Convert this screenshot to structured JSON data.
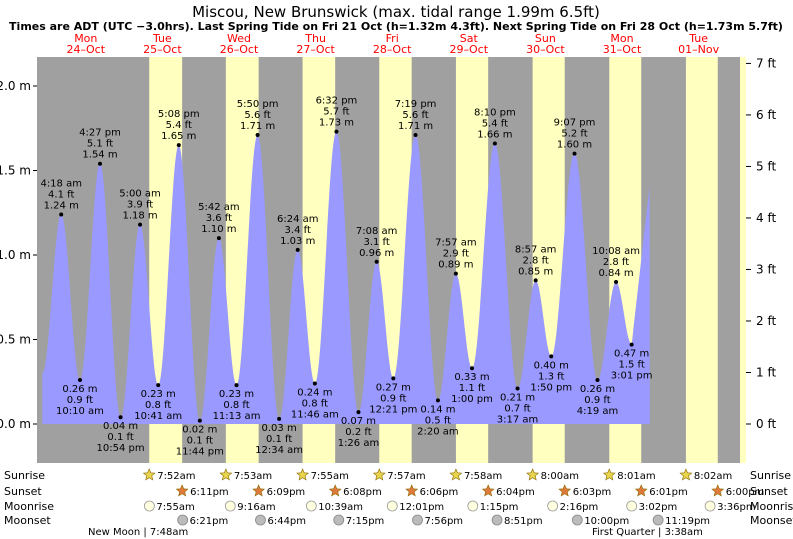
{
  "chart_data": {
    "type": "area",
    "title": "Miscou, New Brunswick (max. tidal range 1.99m 6.5ft)",
    "subtitle": "Times are ADT (UTC −3.0hrs). Last Spring Tide on Fri 21 Oct (h=1.32m 4.3ft). Next Spring Tide on Fri 28 Oct (h=1.73m 5.7ft)",
    "days": [
      {
        "dow": "Mon",
        "date": "24–Oct"
      },
      {
        "dow": "Tue",
        "date": "25–Oct"
      },
      {
        "dow": "Wed",
        "date": "26–Oct"
      },
      {
        "dow": "Thu",
        "date": "27–Oct"
      },
      {
        "dow": "Fri",
        "date": "28–Oct"
      },
      {
        "dow": "Sat",
        "date": "29–Oct"
      },
      {
        "dow": "Sun",
        "date": "30–Oct"
      },
      {
        "dow": "Mon",
        "date": "31–Oct"
      },
      {
        "dow": "Tue",
        "date": "01–Nov"
      }
    ],
    "y_left_ticks": [
      {
        "v": 0.0,
        "label": "0.0 m"
      },
      {
        "v": 0.5,
        "label": "0.5 m"
      },
      {
        "v": 1.0,
        "label": "1.0 m"
      },
      {
        "v": 1.5,
        "label": "1.5 m"
      },
      {
        "v": 2.0,
        "label": "2.0 m"
      }
    ],
    "y_right_ticks": [
      {
        "v": 0.0,
        "label": "0 ft"
      },
      {
        "v": 0.3048,
        "label": "1 ft"
      },
      {
        "v": 0.6096,
        "label": "2 ft"
      },
      {
        "v": 0.9144,
        "label": "3 ft"
      },
      {
        "v": 1.2192,
        "label": "4 ft"
      },
      {
        "v": 1.524,
        "label": "5 ft"
      },
      {
        "v": 1.8288,
        "label": "6 ft"
      },
      {
        "v": 2.1336,
        "label": "7 ft"
      }
    ],
    "tides": [
      {
        "time": "4:18 am",
        "ft": "4.1 ft",
        "m": "1.24 m",
        "hour": 4.3,
        "h": 1.24,
        "type": "high"
      },
      {
        "time": "10:10 am",
        "ft": "0.9 ft",
        "m": "0.26 m",
        "hour": 10.17,
        "h": 0.26,
        "type": "low"
      },
      {
        "time": "4:27 pm",
        "ft": "5.1 ft",
        "m": "1.54 m",
        "hour": 16.45,
        "h": 1.54,
        "type": "high"
      },
      {
        "time": "10:54 pm",
        "ft": "0.1 ft",
        "m": "0.04 m",
        "hour": 22.9,
        "h": 0.04,
        "type": "low"
      },
      {
        "time": "5:00 am",
        "ft": "3.9 ft",
        "m": "1.18 m",
        "hour": 29.0,
        "h": 1.18,
        "type": "high"
      },
      {
        "time": "10:41 am",
        "ft": "0.8 ft",
        "m": "0.23 m",
        "hour": 34.68,
        "h": 0.23,
        "type": "low"
      },
      {
        "time": "5:08 pm",
        "ft": "5.4 ft",
        "m": "1.65 m",
        "hour": 41.13,
        "h": 1.65,
        "type": "high"
      },
      {
        "time": "11:44 pm",
        "ft": "0.1 ft",
        "m": "0.02 m",
        "hour": 47.73,
        "h": 0.02,
        "type": "low"
      },
      {
        "time": "5:42 am",
        "ft": "3.6 ft",
        "m": "1.10 m",
        "hour": 53.7,
        "h": 1.1,
        "type": "high"
      },
      {
        "time": "11:13 am",
        "ft": "0.8 ft",
        "m": "0.23 m",
        "hour": 59.22,
        "h": 0.23,
        "type": "low"
      },
      {
        "time": "5:50 pm",
        "ft": "5.6 ft",
        "m": "1.71 m",
        "hour": 65.83,
        "h": 1.71,
        "type": "high"
      },
      {
        "time": "12:34 am",
        "ft": "0.1 ft",
        "m": "0.03 m",
        "hour": 72.57,
        "h": 0.03,
        "type": "low"
      },
      {
        "time": "6:24 am",
        "ft": "3.4 ft",
        "m": "1.03 m",
        "hour": 78.4,
        "h": 1.03,
        "type": "high"
      },
      {
        "time": "11:46 am",
        "ft": "0.8 ft",
        "m": "0.24 m",
        "hour": 83.77,
        "h": 0.24,
        "type": "low"
      },
      {
        "time": "6:32 pm",
        "ft": "5.7 ft",
        "m": "1.73 m",
        "hour": 90.53,
        "h": 1.73,
        "type": "high"
      },
      {
        "time": "1:26 am",
        "ft": "0.2 ft",
        "m": "0.07 m",
        "hour": 97.43,
        "h": 0.07,
        "type": "low"
      },
      {
        "time": "7:08 am",
        "ft": "3.1 ft",
        "m": "0.96 m",
        "hour": 103.13,
        "h": 0.96,
        "type": "high"
      },
      {
        "time": "12:21 pm",
        "ft": "0.9 ft",
        "m": "0.27 m",
        "hour": 108.35,
        "h": 0.27,
        "type": "low"
      },
      {
        "time": "7:19 pm",
        "ft": "5.6 ft",
        "m": "1.71 m",
        "hour": 115.32,
        "h": 1.71,
        "type": "high"
      },
      {
        "time": "2:20 am",
        "ft": "0.5 ft",
        "m": "0.14 m",
        "hour": 122.33,
        "h": 0.14,
        "type": "low"
      },
      {
        "time": "7:57 am",
        "ft": "2.9 ft",
        "m": "0.89 m",
        "hour": 127.95,
        "h": 0.89,
        "type": "high"
      },
      {
        "time": "1:00 pm",
        "ft": "1.1 ft",
        "m": "0.33 m",
        "hour": 133.0,
        "h": 0.33,
        "type": "low"
      },
      {
        "time": "8:10 pm",
        "ft": "5.4 ft",
        "m": "1.66 m",
        "hour": 140.17,
        "h": 1.66,
        "type": "high"
      },
      {
        "time": "3:17 am",
        "ft": "0.7 ft",
        "m": "0.21 m",
        "hour": 147.28,
        "h": 0.21,
        "type": "low"
      },
      {
        "time": "8:57 am",
        "ft": "2.8 ft",
        "m": "0.85 m",
        "hour": 152.95,
        "h": 0.85,
        "type": "high"
      },
      {
        "time": "1:50 pm",
        "ft": "1.3 ft",
        "m": "0.40 m",
        "hour": 157.83,
        "h": 0.4,
        "type": "low"
      },
      {
        "time": "9:07 pm",
        "ft": "5.2 ft",
        "m": "1.60 m",
        "hour": 165.12,
        "h": 1.6,
        "type": "high"
      },
      {
        "time": "4:19 am",
        "ft": "0.9 ft",
        "m": "0.26 m",
        "hour": 172.32,
        "h": 0.26,
        "type": "low"
      },
      {
        "time": "10:08 am",
        "ft": "2.8 ft",
        "m": "0.84 m",
        "hour": 178.13,
        "h": 0.84,
        "type": "high"
      },
      {
        "time": "3:01 pm",
        "ft": "1.5 ft",
        "m": "0.47 m",
        "hour": 183.02,
        "h": 0.47,
        "type": "low"
      }
    ],
    "sun": [
      {
        "rise": "7:52am",
        "set": "6:11pm",
        "rise_hr": 31.87,
        "set_hr": 42.18
      },
      {
        "rise": "7:53am",
        "set": "6:09pm",
        "rise_hr": 55.88,
        "set_hr": 66.15
      },
      {
        "rise": "7:55am",
        "set": "6:08pm",
        "rise_hr": 79.92,
        "set_hr": 90.13
      },
      {
        "rise": "7:57am",
        "set": "6:06pm",
        "rise_hr": 103.95,
        "set_hr": 114.1
      },
      {
        "rise": "7:58am",
        "set": "6:04pm",
        "rise_hr": 127.97,
        "set_hr": 138.07
      },
      {
        "rise": "8:00am",
        "set": "6:03pm",
        "rise_hr": 152.0,
        "set_hr": 162.05
      },
      {
        "rise": "8:01am",
        "set": "6:01pm",
        "rise_hr": 176.02,
        "set_hr": 186.02
      },
      {
        "rise": "8:02am",
        "set": "6:00pm",
        "rise_hr": 200.03,
        "set_hr": 210.0
      }
    ],
    "moon": [
      {
        "rise": "7:55am",
        "set": "6:21pm",
        "rise_hr": 31.92,
        "set_hr": 42.35
      },
      {
        "rise": "9:16am",
        "set": "6:44pm",
        "rise_hr": 57.27,
        "set_hr": 66.73
      },
      {
        "rise": "10:39am",
        "set": "7:15pm",
        "rise_hr": 82.65,
        "set_hr": 91.25
      },
      {
        "rise": "12:01pm",
        "set": "7:56pm",
        "rise_hr": 108.02,
        "set_hr": 115.93
      },
      {
        "rise": "1:15pm",
        "set": "8:51pm",
        "rise_hr": 133.25,
        "set_hr": 140.85
      },
      {
        "rise": "2:16pm",
        "set": "10:00pm",
        "rise_hr": 158.27,
        "set_hr": 166.0
      },
      {
        "rise": "3:02pm",
        "set": "11:19pm",
        "rise_hr": 183.03,
        "set_hr": 191.32
      },
      {
        "rise": "3:36pm",
        "set": "",
        "rise_hr": 207.6,
        "set_hr": null
      }
    ],
    "row_labels": {
      "sunrise": "Sunrise",
      "sunset": "Sunset",
      "moonrise": "Moonrise",
      "moonset": "Moonset"
    },
    "phases": {
      "new_moon": "New Moon | 7:48am",
      "first_quarter": "First Quarter | 3:38am"
    },
    "colors": {
      "water": "#9999ff",
      "night": "#a0a0a0",
      "day": "#ffffc0",
      "label": "#ff0000",
      "sun": "#e8d44d",
      "sunset": "#e07a3c",
      "moonrise": "#ffffe0",
      "moonset": "#bbbbbb"
    }
  }
}
